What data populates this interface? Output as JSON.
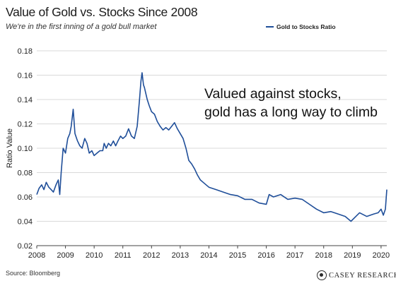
{
  "header": {
    "title": "Value of Gold vs. Stocks Since 2008",
    "subtitle": "We're in the first inning of a gold bull market"
  },
  "legend": {
    "label": "Gold to Stocks Ratio"
  },
  "annotation": {
    "line1": "Valued against stocks,",
    "line2": "gold has a long way to climb"
  },
  "footer": {
    "source": "Source: Bloomberg",
    "brand": "CASEY RESEARCH",
    "brand_icon": "casey-research-logo-icon"
  },
  "colors": {
    "line": "#1f4e99",
    "grid": "#d9d9d9",
    "axis": "#444444"
  },
  "chart_data": {
    "type": "line",
    "title": "Value of Gold vs. Stocks Since 2008",
    "subtitle": "We're in the first inning of a gold bull market",
    "xlabel": "",
    "ylabel": "Ratio Value",
    "xlim": [
      2008.0,
      2020.2
    ],
    "ylim": [
      0.02,
      0.18
    ],
    "y_ticks": [
      0.02,
      0.04,
      0.06,
      0.08,
      0.1,
      0.12,
      0.14,
      0.16,
      0.18
    ],
    "y_tick_labels": [
      "0.02",
      "0.04",
      "0.06",
      "0.08",
      "0.10",
      "0.12",
      "0.14",
      "0.16",
      "0.18"
    ],
    "x_ticks": [
      2008,
      2009,
      2010,
      2011,
      2012,
      2013,
      2014,
      2015,
      2016,
      2017,
      2018,
      2019,
      2020
    ],
    "x_tick_labels": [
      "2008",
      "2009",
      "2010",
      "2011",
      "2012",
      "2013",
      "2014",
      "2015",
      "2016",
      "2017",
      "2018",
      "2019",
      "2020"
    ],
    "grid": "horizontal",
    "legend_position": "top-right",
    "series": [
      {
        "name": "Gold to Stocks Ratio",
        "x": [
          2008.0,
          2008.08,
          2008.17,
          2008.25,
          2008.33,
          2008.42,
          2008.5,
          2008.58,
          2008.67,
          2008.75,
          2008.8,
          2008.85,
          2008.92,
          2009.0,
          2009.08,
          2009.15,
          2009.2,
          2009.27,
          2009.33,
          2009.42,
          2009.5,
          2009.58,
          2009.67,
          2009.75,
          2009.83,
          2009.92,
          2010.0,
          2010.1,
          2010.2,
          2010.3,
          2010.35,
          2010.42,
          2010.5,
          2010.58,
          2010.67,
          2010.75,
          2010.83,
          2010.92,
          2011.0,
          2011.1,
          2011.2,
          2011.3,
          2011.4,
          2011.5,
          2011.58,
          2011.63,
          2011.67,
          2011.72,
          2011.75,
          2011.8,
          2011.85,
          2011.92,
          2012.0,
          2012.1,
          2012.2,
          2012.3,
          2012.4,
          2012.5,
          2012.6,
          2012.7,
          2012.8,
          2012.9,
          2013.0,
          2013.1,
          2013.2,
          2013.3,
          2013.4,
          2013.5,
          2013.6,
          2013.7,
          2013.8,
          2013.9,
          2014.0,
          2014.25,
          2014.5,
          2014.75,
          2015.0,
          2015.25,
          2015.5,
          2015.75,
          2016.0,
          2016.1,
          2016.25,
          2016.5,
          2016.75,
          2017.0,
          2017.25,
          2017.5,
          2017.75,
          2018.0,
          2018.25,
          2018.5,
          2018.75,
          2018.95,
          2019.25,
          2019.5,
          2019.75,
          2019.9,
          2020.0,
          2020.08,
          2020.15,
          2020.2
        ],
        "values": [
          0.062,
          0.067,
          0.07,
          0.066,
          0.072,
          0.068,
          0.066,
          0.064,
          0.07,
          0.074,
          0.062,
          0.08,
          0.1,
          0.096,
          0.108,
          0.112,
          0.118,
          0.132,
          0.112,
          0.106,
          0.102,
          0.1,
          0.108,
          0.104,
          0.096,
          0.098,
          0.094,
          0.096,
          0.098,
          0.098,
          0.104,
          0.1,
          0.104,
          0.102,
          0.106,
          0.102,
          0.106,
          0.11,
          0.108,
          0.11,
          0.116,
          0.11,
          0.108,
          0.118,
          0.14,
          0.155,
          0.162,
          0.152,
          0.15,
          0.145,
          0.14,
          0.135,
          0.13,
          0.128,
          0.122,
          0.118,
          0.115,
          0.117,
          0.115,
          0.118,
          0.121,
          0.116,
          0.112,
          0.108,
          0.1,
          0.09,
          0.087,
          0.083,
          0.078,
          0.074,
          0.072,
          0.07,
          0.068,
          0.066,
          0.064,
          0.062,
          0.061,
          0.058,
          0.058,
          0.055,
          0.054,
          0.062,
          0.06,
          0.062,
          0.058,
          0.059,
          0.058,
          0.054,
          0.05,
          0.047,
          0.048,
          0.046,
          0.044,
          0.04,
          0.047,
          0.044,
          0.046,
          0.047,
          0.05,
          0.045,
          0.05,
          0.066
        ]
      }
    ]
  }
}
